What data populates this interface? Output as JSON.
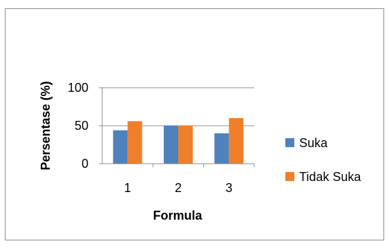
{
  "chart_data": {
    "type": "bar",
    "categories": [
      "1",
      "2",
      "3"
    ],
    "series": [
      {
        "name": "Suka",
        "values": [
          44,
          50,
          40
        ],
        "color": "#4f81bd"
      },
      {
        "name": "Tidak Suka",
        "values": [
          56,
          50,
          60
        ],
        "color": "#f07f2b"
      }
    ],
    "xlabel": "Formula",
    "ylabel": "Persentase (%)",
    "ylim": [
      0,
      100
    ],
    "yticks": [
      "0",
      "50",
      "100"
    ],
    "grid": true,
    "legend_position": "right"
  }
}
